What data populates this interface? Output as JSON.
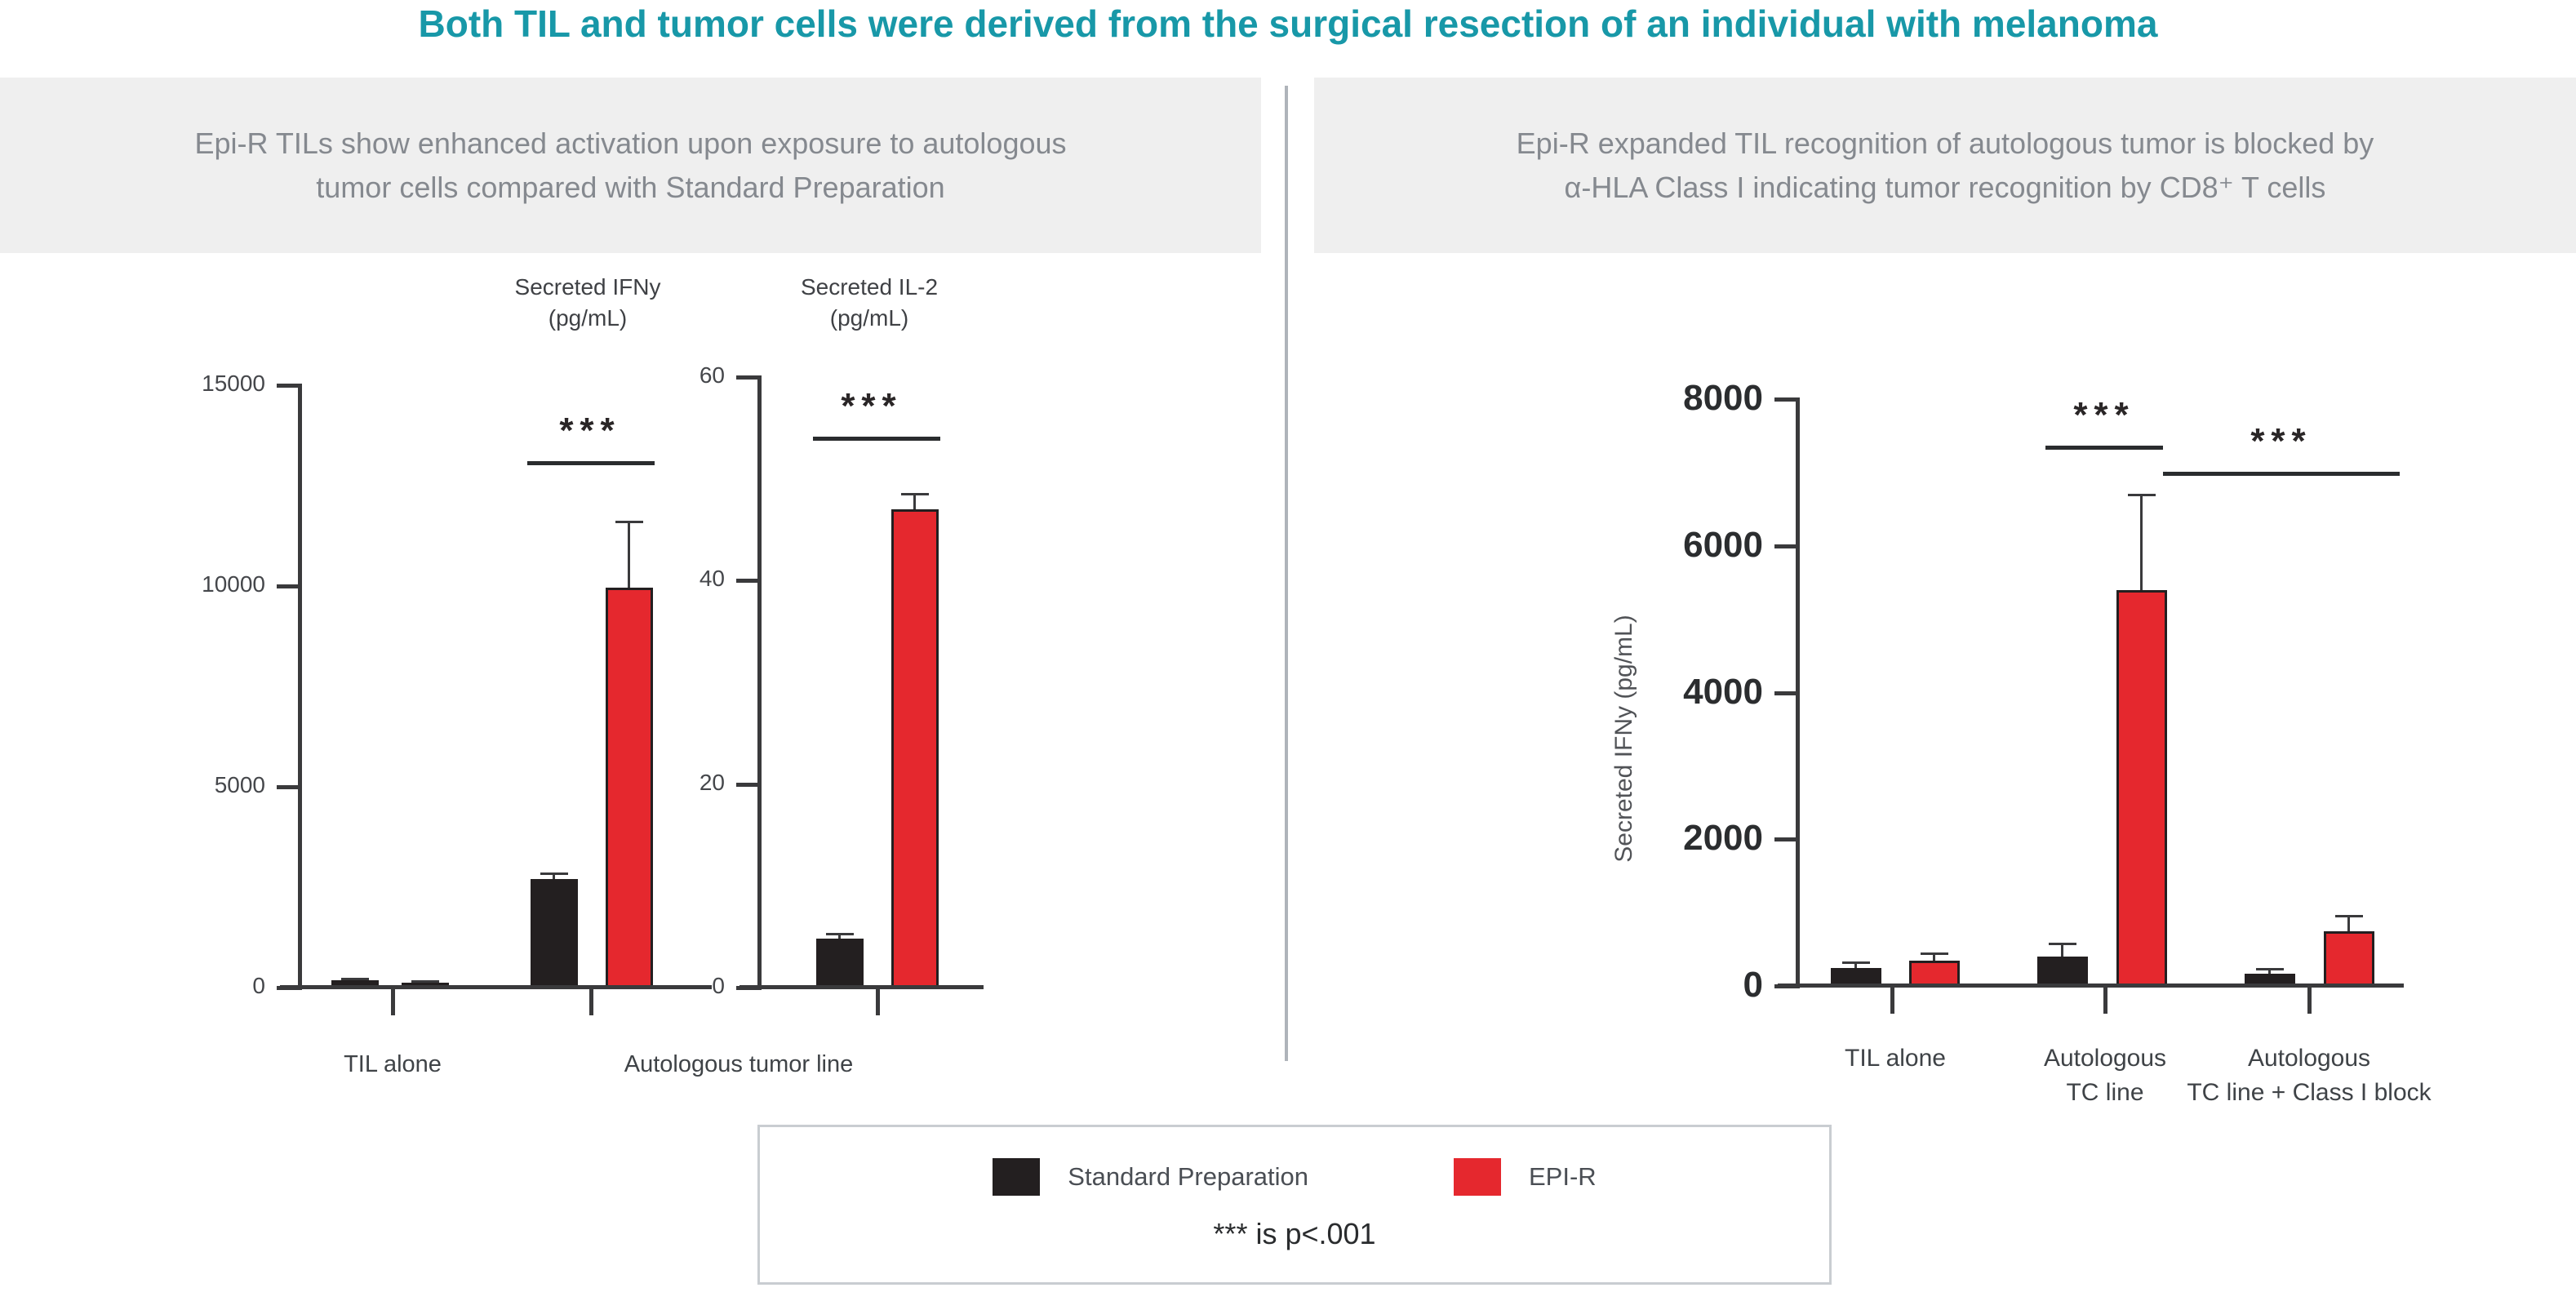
{
  "title": {
    "text": "Both TIL and tumor cells were derived from the surgical resection of an individual with melanoma"
  },
  "panels": {
    "left": {
      "header_line1": "Epi-R TILs show enhanced activation upon exposure to autologous",
      "header_line2": "tumor cells compared with Standard Preparation"
    },
    "right": {
      "header_line1": "Epi-R expanded TIL recognition of autologous tumor is blocked by",
      "header_line2": "α-HLA Class I indicating tumor recognition by CD8⁺ T cells"
    }
  },
  "left_panel": {
    "xlabels": [
      "TIL alone",
      "Autologous tumor line"
    ]
  },
  "legend": {
    "items": [
      {
        "label": "Standard Preparation",
        "color": "#231F20"
      },
      {
        "label": "EPI-R",
        "color": "#E5282E"
      }
    ],
    "note": "*** is p<.001"
  },
  "colors": {
    "accent_teal": "#1898A8",
    "bar_black": "#231F20",
    "bar_red": "#E5282E",
    "header_bg": "#EFEFEF",
    "header_text": "#85898F",
    "divider_gray": "#AFB4BA",
    "axis_dark": "#3A3A3C"
  },
  "chart_data": [
    {
      "id": "ifng_left",
      "type": "bar",
      "title": "Secreted IFNy (pg/mL)",
      "title_lines": [
        "Secreted IFNy",
        "(pg/mL)"
      ],
      "categories": [
        "TIL alone",
        "Autologous tumor line"
      ],
      "series": [
        {
          "name": "Standard Preparation",
          "values": [
            180,
            2700
          ],
          "error_top": [
            230,
            2850
          ]
        },
        {
          "name": "EPI-R",
          "values": [
            130,
            9950
          ],
          "error_top": [
            160,
            11600
          ]
        }
      ],
      "ylim": [
        0,
        15000
      ],
      "yticks": [
        0,
        5000,
        10000,
        15000
      ],
      "grid": false,
      "significance": [
        {
          "label": "***",
          "compares": "Standard Preparation vs EPI-R, autologous tumor line"
        }
      ]
    },
    {
      "id": "il2_left",
      "type": "bar",
      "title": "Secreted IL-2 (pg/mL)",
      "title_lines": [
        "Secreted IL-2",
        "(pg/mL)"
      ],
      "categories": [
        "Autologous tumor line"
      ],
      "series": [
        {
          "name": "Standard Preparation",
          "values": [
            4.8
          ],
          "error_top": [
            5.3
          ]
        },
        {
          "name": "EPI-R",
          "values": [
            47
          ],
          "error_top": [
            48.5
          ]
        }
      ],
      "ylim": [
        0,
        60
      ],
      "yticks": [
        0,
        20,
        40,
        60
      ],
      "grid": false,
      "significance": [
        {
          "label": "***",
          "compares": "Standard Preparation vs EPI-R, autologous tumor line"
        }
      ]
    },
    {
      "id": "ifng_right",
      "type": "bar",
      "title": "",
      "ylabel": "Secreted IFNy (pg/mL)",
      "categories": [
        "TIL alone",
        "Autologous TC line",
        "Autologous TC line + Class I block"
      ],
      "categories_wrapped": [
        [
          "TIL alone"
        ],
        [
          "Autologous",
          "TC line"
        ],
        [
          "Autologous",
          "TC line + Class I block"
        ]
      ],
      "series": [
        {
          "name": "Standard Preparation",
          "values": [
            250,
            400,
            170
          ],
          "error_top": [
            320,
            580,
            230
          ]
        },
        {
          "name": "EPI-R",
          "values": [
            350,
            5400,
            750
          ],
          "error_top": [
            440,
            6700,
            960
          ]
        }
      ],
      "ylim": [
        0,
        8000
      ],
      "yticks": [
        0,
        2000,
        4000,
        6000,
        8000
      ],
      "grid": false,
      "significance": [
        {
          "label": "***",
          "compares": "Standard Preparation vs EPI-R, autologous TC line"
        },
        {
          "label": "***",
          "compares": "EPI-R autologous TC line vs autologous TC line + Class I block"
        }
      ]
    }
  ]
}
